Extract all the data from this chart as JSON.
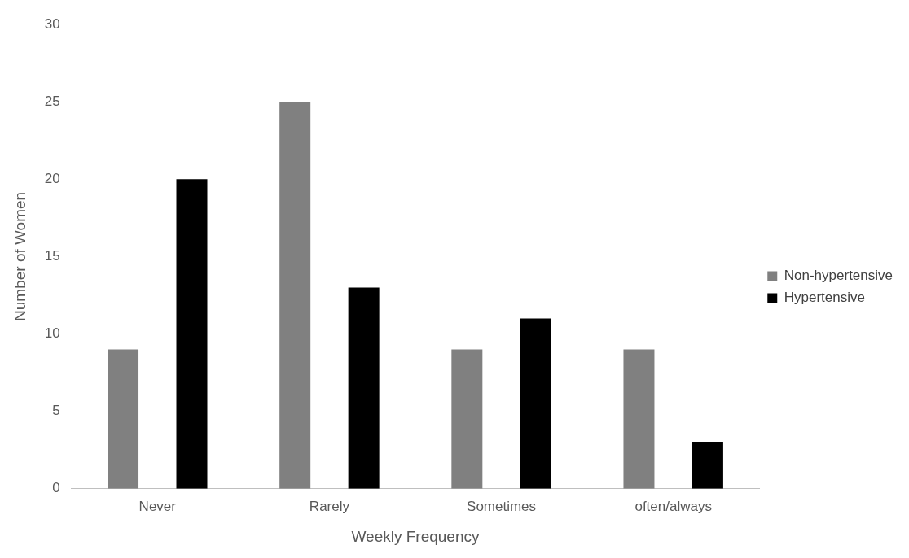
{
  "chart_data": {
    "type": "bar",
    "xlabel": "Weekly Frequency",
    "ylabel": "Number of Women",
    "categories": [
      "Never",
      "Rarely",
      "Sometimes",
      "often/always"
    ],
    "series": [
      {
        "name": "Non-hypertensive",
        "color": "#808080",
        "values": [
          9,
          25,
          9,
          9
        ]
      },
      {
        "name": "Hypertensive",
        "color": "#000000",
        "values": [
          20,
          13,
          11,
          3
        ]
      }
    ],
    "ylim": [
      0,
      30
    ],
    "yticks": [
      0,
      5,
      10,
      15,
      20,
      25,
      30
    ],
    "grid": false,
    "legend": "right"
  }
}
